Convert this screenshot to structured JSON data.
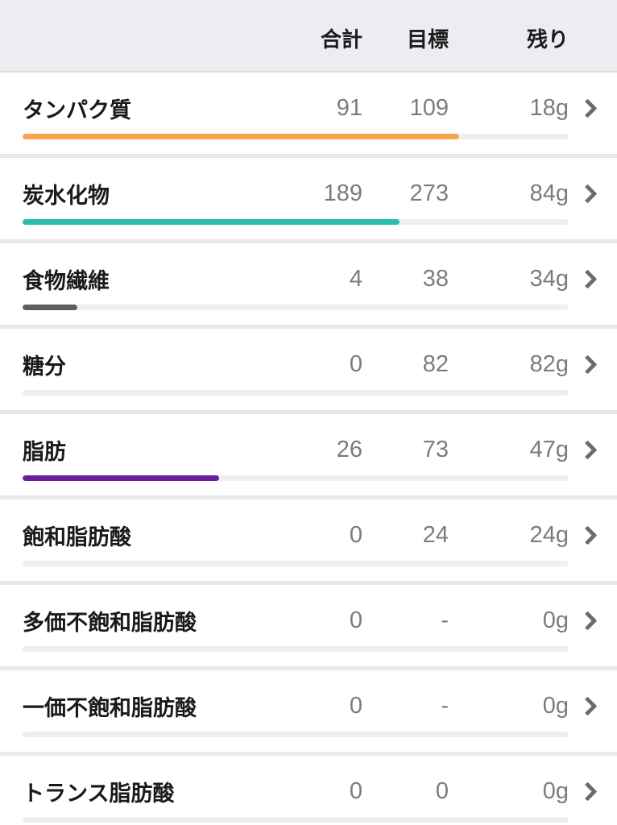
{
  "header": {
    "total_label": "合計",
    "goal_label": "目標",
    "remaining_label": "残り"
  },
  "colors": {
    "header_bg": "#ECECF1",
    "row_bg": "#FFFFFF",
    "separator": "#E8E8ED",
    "label_text": "#1A1A1A",
    "value_text": "#7B7B80",
    "chevron": "#6B6B70",
    "bar_track": "#EFEFF1",
    "protein_bar": "#F8A44B",
    "carbs_bar": "#2BBCAA",
    "fiber_bar": "#5F5F5F",
    "fat_bar": "#6B1F9C"
  },
  "rows": [
    {
      "label": "タンパク質",
      "total": "91",
      "goal": "109",
      "remaining": "18g",
      "bar_color": "#F8A44B",
      "percent": 80
    },
    {
      "label": "炭水化物",
      "total": "189",
      "goal": "273",
      "remaining": "84g",
      "bar_color": "#2BBCAA",
      "percent": 69
    },
    {
      "label": "食物繊維",
      "total": "4",
      "goal": "38",
      "remaining": "34g",
      "bar_color": "#5F5F5F",
      "percent": 10
    },
    {
      "label": "糖分",
      "total": "0",
      "goal": "82",
      "remaining": "82g",
      "bar_color": "#EFEFF1",
      "percent": 0
    },
    {
      "label": "脂肪",
      "total": "26",
      "goal": "73",
      "remaining": "47g",
      "bar_color": "#6B1F9C",
      "percent": 36
    },
    {
      "label": "飽和脂肪酸",
      "total": "0",
      "goal": "24",
      "remaining": "24g",
      "bar_color": "#EFEFF1",
      "percent": 0
    },
    {
      "label": "多価不飽和脂肪酸",
      "total": "0",
      "goal": "-",
      "remaining": "0g",
      "bar_color": "#EFEFF1",
      "percent": 0
    },
    {
      "label": "一価不飽和脂肪酸",
      "total": "0",
      "goal": "-",
      "remaining": "0g",
      "bar_color": "#EFEFF1",
      "percent": 0
    },
    {
      "label": "トランス脂肪酸",
      "total": "0",
      "goal": "0",
      "remaining": "0g",
      "bar_color": "#EFEFF1",
      "percent": 0
    }
  ],
  "chart_data": {
    "type": "table",
    "title": "",
    "columns": [
      "合計",
      "目標",
      "残り"
    ],
    "categories": [
      "タンパク質",
      "炭水化物",
      "食物繊維",
      "糖分",
      "脂肪",
      "飽和脂肪酸",
      "多価不飽和脂肪酸",
      "一価不飽和脂肪酸",
      "トランス脂肪酸"
    ],
    "series": [
      {
        "name": "合計",
        "values": [
          91,
          189,
          4,
          0,
          26,
          0,
          0,
          0,
          0
        ]
      },
      {
        "name": "目標",
        "values": [
          109,
          273,
          38,
          82,
          73,
          24,
          null,
          null,
          0
        ]
      },
      {
        "name": "残り(g)",
        "values": [
          18,
          84,
          34,
          82,
          47,
          24,
          0,
          0,
          0
        ]
      }
    ]
  }
}
